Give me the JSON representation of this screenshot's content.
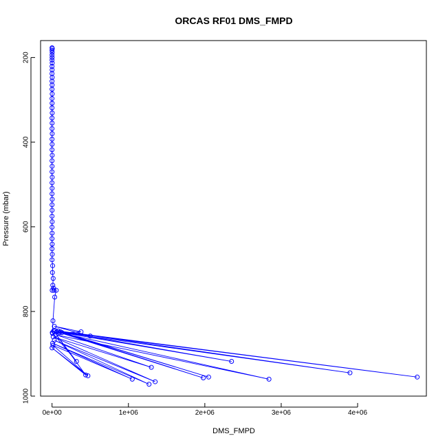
{
  "chart_data": {
    "type": "scatter",
    "title": "ORCAS RF01 DMS_FMPD",
    "xlabel": "DMS_FMPD",
    "ylabel": "Pressure (mbar)",
    "xlim": [
      -150000,
      4900000
    ],
    "ylim": [
      1000,
      160
    ],
    "y_inverted": true,
    "x_ticks": [
      {
        "value": 0,
        "label": "0e+00"
      },
      {
        "value": 1000000,
        "label": "1e+06"
      },
      {
        "value": 2000000,
        "label": "2e+06"
      },
      {
        "value": 3000000,
        "label": "3e+06"
      },
      {
        "value": 4000000,
        "label": "4e+06"
      }
    ],
    "y_ticks": [
      {
        "value": 200,
        "label": "200"
      },
      {
        "value": 400,
        "label": "400"
      },
      {
        "value": 600,
        "label": "600"
      },
      {
        "value": 800,
        "label": "800"
      },
      {
        "value": 1000,
        "label": "1000"
      }
    ],
    "grid": false,
    "legend": "none",
    "marker": "open-circle",
    "line_connected": true,
    "color": "#0000ff",
    "series": [
      {
        "points": [
          [
            0,
            177
          ],
          [
            3000,
            179
          ],
          [
            0,
            183
          ],
          [
            2000,
            188
          ],
          [
            0,
            194
          ],
          [
            1000,
            200
          ],
          [
            0,
            206
          ],
          [
            2000,
            213
          ],
          [
            0,
            221
          ],
          [
            1000,
            229
          ],
          [
            0,
            238
          ],
          [
            2000,
            247
          ],
          [
            0,
            256
          ],
          [
            1000,
            265
          ],
          [
            0,
            275
          ],
          [
            2000,
            286
          ],
          [
            0,
            297
          ],
          [
            1000,
            308
          ],
          [
            0,
            319
          ],
          [
            2000,
            331
          ],
          [
            0,
            343
          ],
          [
            1000,
            355
          ],
          [
            0,
            368
          ],
          [
            2000,
            380
          ],
          [
            0,
            393
          ],
          [
            1000,
            405
          ],
          [
            0,
            418
          ],
          [
            2000,
            431
          ],
          [
            0,
            444
          ],
          [
            1000,
            457
          ],
          [
            0,
            470
          ],
          [
            2000,
            483
          ],
          [
            0,
            496
          ],
          [
            1000,
            509
          ],
          [
            0,
            522
          ],
          [
            2000,
            535
          ],
          [
            0,
            548
          ],
          [
            1000,
            561
          ],
          [
            0,
            575
          ],
          [
            2000,
            588
          ],
          [
            0,
            601
          ],
          [
            1000,
            615
          ],
          [
            0,
            628
          ],
          [
            2000,
            641
          ],
          [
            0,
            652
          ],
          [
            3000,
            665
          ],
          [
            0,
            678
          ],
          [
            8000,
            692
          ],
          [
            5000,
            708
          ],
          [
            15000,
            722
          ],
          [
            10000,
            738
          ],
          [
            20000,
            745
          ],
          [
            2000,
            750
          ],
          [
            25000,
            750
          ],
          [
            55000,
            750
          ],
          [
            35000,
            766
          ],
          [
            12000,
            822
          ],
          [
            6000,
            852
          ],
          [
            380000,
            848
          ],
          [
            30000,
            835
          ],
          [
            500000,
            858
          ],
          [
            40000,
            845
          ],
          [
            2350000,
            918
          ],
          [
            60000,
            848
          ],
          [
            3900000,
            945
          ],
          [
            80000,
            846
          ],
          [
            4780000,
            955
          ],
          [
            110000,
            848
          ],
          [
            2050000,
            955
          ],
          [
            130000,
            850
          ],
          [
            1980000,
            957
          ],
          [
            100000,
            850
          ],
          [
            2840000,
            960
          ],
          [
            50000,
            855
          ],
          [
            1300000,
            932
          ],
          [
            15000,
            860
          ],
          [
            1350000,
            966
          ],
          [
            30000,
            868
          ],
          [
            1270000,
            972
          ],
          [
            8000,
            875
          ],
          [
            1050000,
            960
          ],
          [
            12000,
            880
          ],
          [
            470000,
            952
          ],
          [
            0,
            886
          ],
          [
            440000,
            950
          ],
          [
            20000,
            846
          ],
          [
            320000,
            918
          ],
          [
            3000,
            850
          ]
        ]
      }
    ]
  }
}
